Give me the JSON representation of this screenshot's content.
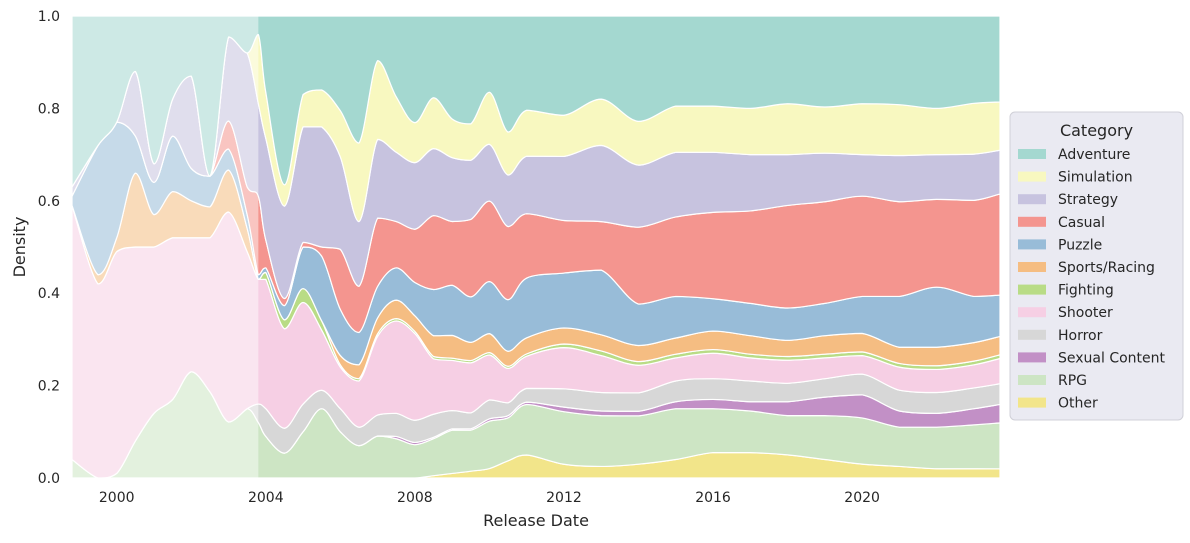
{
  "chart_data": {
    "type": "area",
    "stacked": true,
    "normalized": true,
    "title": "",
    "xlabel": "Release Date",
    "ylabel": "Density",
    "xlim": [
      1998.8,
      2023.7
    ],
    "ylim": [
      0,
      1.0
    ],
    "xticks": [
      2000,
      2004,
      2008,
      2012,
      2016,
      2020
    ],
    "xtick_labels": [
      "2000",
      "2004",
      "2008",
      "2012",
      "2016",
      "2020"
    ],
    "yticks": [
      0,
      0.2,
      0.4,
      0.6,
      0.8,
      1.0
    ],
    "ytick_labels": [
      "0.0",
      "0.2",
      "0.4",
      "0.6",
      "0.8",
      "1.0"
    ],
    "grid": true,
    "faded_region_end": 2003.8,
    "legend": {
      "title": "Category",
      "placement": "right"
    },
    "x": [
      1998.8,
      1999.5,
      2000,
      2000.5,
      2001,
      2001.5,
      2002,
      2002.5,
      2003,
      2003.5,
      2003.8,
      2004,
      2004.5,
      2005,
      2005.5,
      2006,
      2006.5,
      2007,
      2007.5,
      2008,
      2008.5,
      2009,
      2009.5,
      2010,
      2010.5,
      2011,
      2012,
      2013,
      2014,
      2015,
      2016,
      2017,
      2018,
      2019,
      2020,
      2021,
      2022,
      2023,
      2023.7
    ],
    "series": [
      {
        "name": "Other",
        "color": "#f2e58a",
        "values": [
          0,
          0,
          0,
          0,
          0,
          0,
          0,
          0,
          0,
          0,
          0,
          0,
          0,
          0,
          0,
          0,
          0,
          0,
          0,
          0,
          0.005,
          0.01,
          0.015,
          0.02,
          0.04,
          0.05,
          0.03,
          0.025,
          0.03,
          0.04,
          0.055,
          0.055,
          0.05,
          0.04,
          0.03,
          0.025,
          0.02,
          0.02,
          0.02
        ]
      },
      {
        "name": "RPG",
        "color": "#cde5c4",
        "values": [
          0.04,
          0,
          0.01,
          0.08,
          0.14,
          0.17,
          0.23,
          0.14,
          0.08,
          0.15,
          0.12,
          0.09,
          0.07,
          0.1,
          0.15,
          0.1,
          0.07,
          0.08,
          0.085,
          0.075,
          0.08,
          0.095,
          0.09,
          0.1,
          0.1,
          0.11,
          0.115,
          0.11,
          0.105,
          0.11,
          0.095,
          0.09,
          0.085,
          0.095,
          0.1,
          0.085,
          0.09,
          0.095,
          0.1
        ]
      },
      {
        "name": "Sexual Content",
        "color": "#c290c6",
        "values": [
          0,
          0,
          0,
          0,
          0,
          0,
          0,
          0,
          0,
          0,
          0,
          0,
          0,
          0,
          0,
          0,
          0,
          0,
          0.005,
          0.005,
          0.003,
          0.003,
          0.003,
          0.005,
          0.005,
          0.005,
          0.01,
          0.01,
          0.01,
          0.015,
          0.02,
          0.02,
          0.03,
          0.04,
          0.05,
          0.035,
          0.03,
          0.035,
          0.04
        ]
      },
      {
        "name": "Horror",
        "color": "#d7d7d7",
        "values": [
          0,
          0,
          0,
          0,
          0,
          0,
          0,
          0,
          0,
          0,
          0.04,
          0.06,
          0.07,
          0.06,
          0.04,
          0.05,
          0.04,
          0.04,
          0.05,
          0.05,
          0.05,
          0.04,
          0.035,
          0.04,
          0.03,
          0.03,
          0.04,
          0.04,
          0.04,
          0.045,
          0.045,
          0.045,
          0.04,
          0.04,
          0.045,
          0.045,
          0.045,
          0.045,
          0.045
        ]
      },
      {
        "name": "Shooter",
        "color": "#f6cfe4",
        "values": [
          0.55,
          0.42,
          0.48,
          0.42,
          0.36,
          0.35,
          0.29,
          0.25,
          0.3,
          0.34,
          0.27,
          0.28,
          0.28,
          0.22,
          0.13,
          0.09,
          0.1,
          0.15,
          0.2,
          0.195,
          0.12,
          0.11,
          0.11,
          0.095,
          0.08,
          0.07,
          0.09,
          0.08,
          0.06,
          0.05,
          0.055,
          0.05,
          0.05,
          0.045,
          0.04,
          0.05,
          0.05,
          0.05,
          0.055
        ]
      },
      {
        "name": "Fighting",
        "color": "#b9dc86",
        "values": [
          0,
          0,
          0,
          0,
          0,
          0,
          0,
          0,
          0,
          0,
          0,
          0.015,
          0.025,
          0.03,
          0.02,
          0.005,
          0.005,
          0.005,
          0.005,
          0.005,
          0.005,
          0.005,
          0.005,
          0.005,
          0.005,
          0.005,
          0.008,
          0.01,
          0.008,
          0.008,
          0.008,
          0.008,
          0.008,
          0.008,
          0.008,
          0.008,
          0.008,
          0.008,
          0.008
        ]
      },
      {
        "name": "Sports/Racing",
        "color": "#f5bd82",
        "values": [
          0,
          0.02,
          0.03,
          0.16,
          0.07,
          0.1,
          0.08,
          0.05,
          0.06,
          0.05,
          0,
          0,
          0,
          0,
          0,
          0.02,
          0.03,
          0.03,
          0.04,
          0.035,
          0.045,
          0.05,
          0.04,
          0.04,
          0.035,
          0.035,
          0.035,
          0.035,
          0.035,
          0.035,
          0.04,
          0.04,
          0.035,
          0.04,
          0.04,
          0.035,
          0.04,
          0.04,
          0.04
        ]
      },
      {
        "name": "Puzzle",
        "color": "#98bcd8",
        "values": [
          0.02,
          0.28,
          0.25,
          0.08,
          0.07,
          0.12,
          0.07,
          0.05,
          0.03,
          0.03,
          0.01,
          0.01,
          0.04,
          0.09,
          0.14,
          0.1,
          0.07,
          0.06,
          0.07,
          0.075,
          0.1,
          0.11,
          0.1,
          0.11,
          0.12,
          0.13,
          0.12,
          0.14,
          0.09,
          0.09,
          0.07,
          0.07,
          0.07,
          0.07,
          0.08,
          0.11,
          0.13,
          0.1,
          0.09
        ]
      },
      {
        "name": "Casual",
        "color": "#f4958f",
        "values": [
          0,
          0,
          0,
          0,
          0,
          0,
          0,
          0,
          0.04,
          0.06,
          0.17,
          0.06,
          0.02,
          0.01,
          0.02,
          0.13,
          0.1,
          0.13,
          0.1,
          0.12,
          0.16,
          0.14,
          0.17,
          0.17,
          0.17,
          0.14,
          0.115,
          0.105,
          0.167,
          0.172,
          0.187,
          0.2,
          0.222,
          0.22,
          0.217,
          0.205,
          0.19,
          0.208,
          0.22
        ]
      },
      {
        "name": "Strategy",
        "color": "#c7c3df",
        "values": [
          0.02,
          0,
          0,
          0.14,
          0.04,
          0.08,
          0.2,
          0,
          0.12,
          0.29,
          0.2,
          0.22,
          0.26,
          0.25,
          0.26,
          0.2,
          0.14,
          0.15,
          0.15,
          0.15,
          0.145,
          0.14,
          0.13,
          0.12,
          0.12,
          0.125,
          0.14,
          0.165,
          0.135,
          0.14,
          0.13,
          0.122,
          0.11,
          0.105,
          0.09,
          0.1,
          0.097,
          0.1,
          0.095
        ]
      },
      {
        "name": "Simulation",
        "color": "#f8f8c0",
        "values": [
          0,
          0,
          0,
          0,
          0,
          0,
          0,
          0,
          0,
          0,
          0.15,
          0.1,
          0.06,
          0.07,
          0.08,
          0.1,
          0.17,
          0.15,
          0.12,
          0.09,
          0.11,
          0.085,
          0.08,
          0.11,
          0.1,
          0.1,
          0.09,
          0.1,
          0.095,
          0.1,
          0.1,
          0.1,
          0.11,
          0.1,
          0.11,
          0.11,
          0.1,
          0.11,
          0.105
        ]
      },
      {
        "name": "Adventure",
        "color": "#a4d8d0",
        "values": [
          0.37,
          0.28,
          0.23,
          0.12,
          0.32,
          0.18,
          0.13,
          0.26,
          0.03,
          0.08,
          0.04,
          0.165,
          0.475,
          0.17,
          0.16,
          0.205,
          0.275,
          0.085,
          0.175,
          0.24,
          0.177,
          0.226,
          0.237,
          0.161,
          0.27,
          0.205,
          0.217,
          0.18,
          0.229,
          0.195,
          0.195,
          0.2,
          0.19,
          0.197,
          0.19,
          0.192,
          0.2,
          0.189,
          0.187
        ]
      }
    ]
  }
}
